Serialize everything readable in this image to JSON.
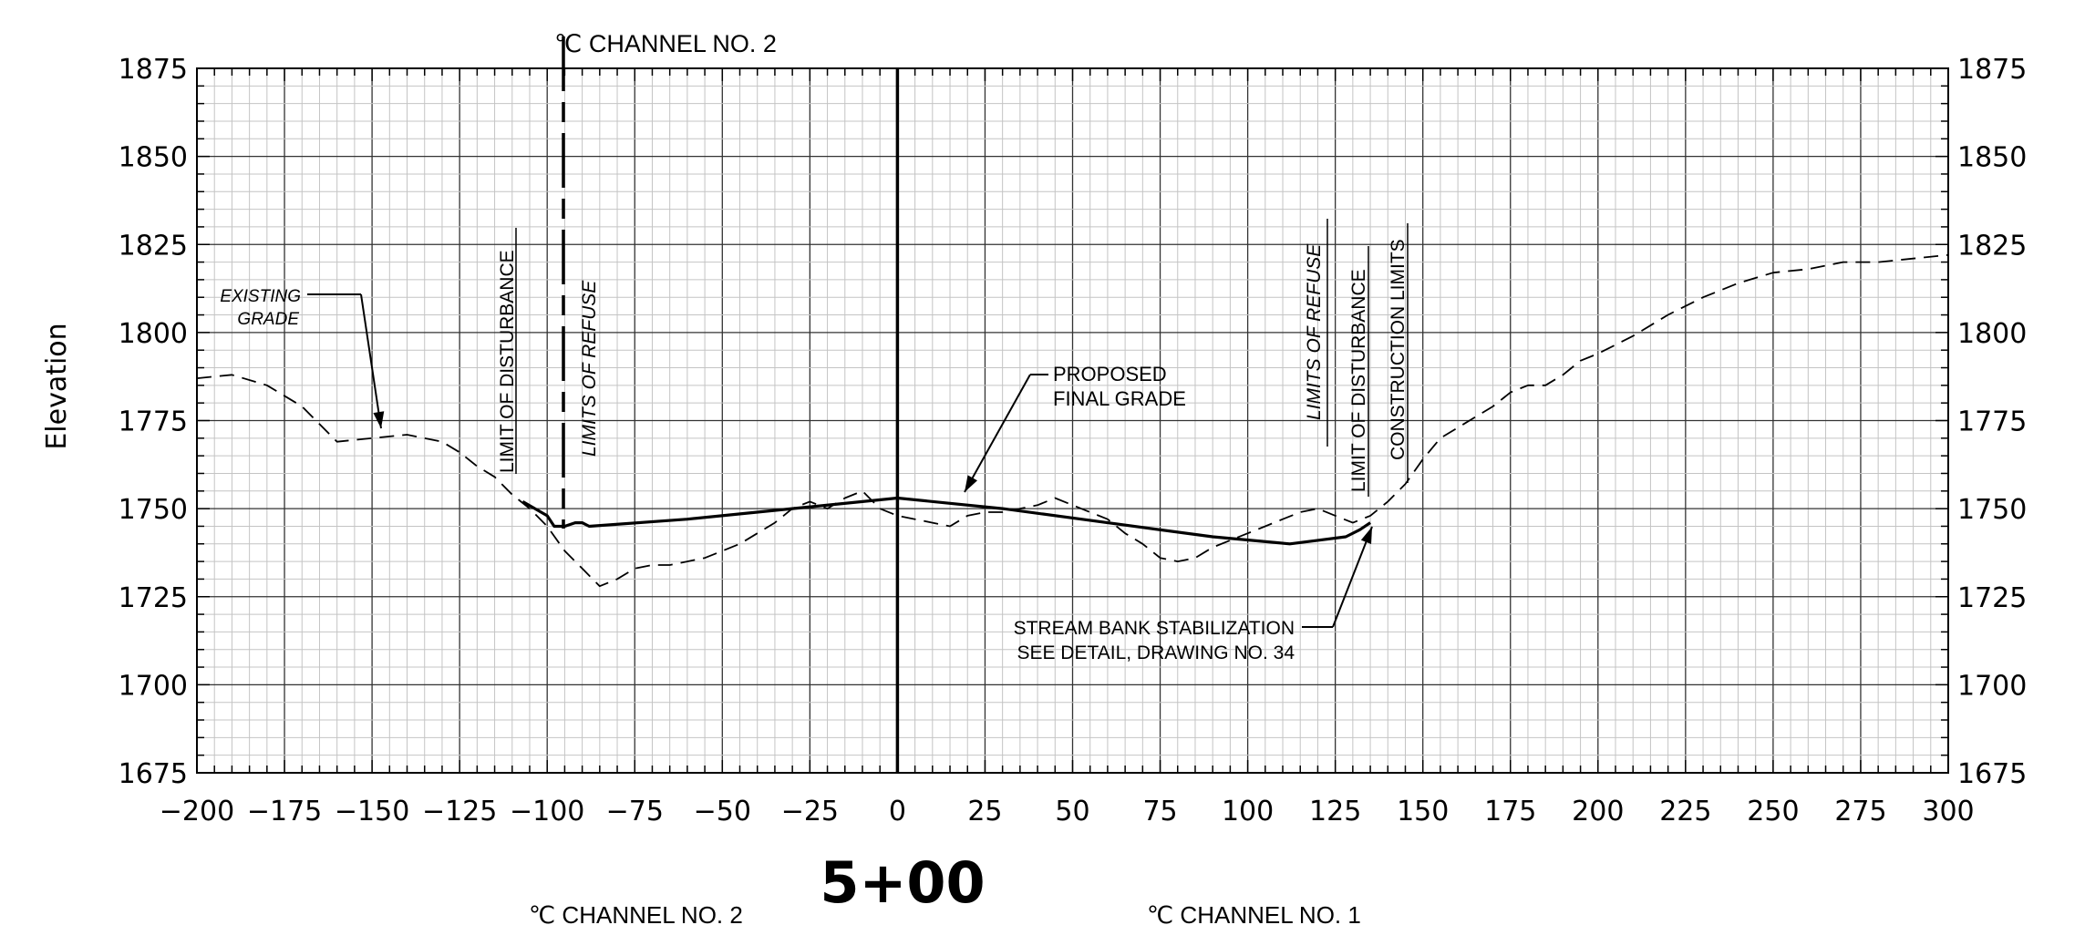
{
  "chart_data": {
    "type": "line",
    "title": "5+00",
    "xlabel": "",
    "ylabel": "Elevation",
    "xlim": [
      -200,
      300
    ],
    "ylim": [
      1675,
      1875
    ],
    "x_ticks": [
      -200,
      -175,
      -150,
      -125,
      -100,
      -75,
      -50,
      -25,
      0,
      25,
      50,
      75,
      100,
      125,
      150,
      175,
      200,
      225,
      250,
      275,
      300
    ],
    "y_ticks": [
      1675,
      1700,
      1725,
      1750,
      1775,
      1800,
      1825,
      1850,
      1875
    ],
    "grid": true,
    "series": [
      {
        "name": "EXISTING GRADE",
        "style": "dashed",
        "x": [
          -200,
          -190,
          -180,
          -170,
          -160,
          -150,
          -140,
          -135,
          -130,
          -125,
          -120,
          -115,
          -110,
          -105,
          -100,
          -95,
          -90,
          -85,
          -80,
          -75,
          -70,
          -65,
          -60,
          -55,
          -50,
          -45,
          -40,
          -35,
          -30,
          -25,
          -20,
          -15,
          -10,
          -5,
          0,
          5,
          10,
          15,
          20,
          25,
          30,
          35,
          40,
          45,
          50,
          55,
          60,
          65,
          70,
          75,
          80,
          85,
          90,
          95,
          100,
          105,
          110,
          115,
          120,
          125,
          130,
          135,
          140,
          145,
          150,
          155,
          160,
          165,
          170,
          175,
          180,
          185,
          190,
          195,
          200,
          210,
          220,
          230,
          240,
          250,
          260,
          270,
          280,
          290,
          300
        ],
        "y": [
          1787,
          1788,
          1785,
          1779,
          1769,
          1770,
          1771,
          1770,
          1769,
          1766,
          1762,
          1759,
          1754,
          1750,
          1745,
          1738,
          1733,
          1728,
          1730,
          1733,
          1734,
          1734,
          1735,
          1736,
          1738,
          1740,
          1743,
          1746,
          1750,
          1752,
          1750,
          1753,
          1755,
          1750,
          1748,
          1747,
          1746,
          1745,
          1748,
          1749,
          1749,
          1750,
          1751,
          1753,
          1751,
          1749,
          1747,
          1743,
          1740,
          1736,
          1735,
          1736,
          1739,
          1741,
          1743,
          1745,
          1747,
          1749,
          1750,
          1748,
          1746,
          1748,
          1752,
          1757,
          1764,
          1770,
          1773,
          1776,
          1779,
          1783,
          1785,
          1785,
          1788,
          1792,
          1794,
          1799,
          1805,
          1810,
          1814,
          1817,
          1818,
          1820,
          1820,
          1821,
          1822
        ]
      },
      {
        "name": "PROPOSED FINAL GRADE",
        "style": "solid",
        "x": [
          -107,
          -100,
          -98,
          -95,
          -92,
          -90,
          -88,
          -60,
          -30,
          0,
          30,
          60,
          90,
          112,
          120,
          128,
          132,
          135
        ],
        "y": [
          1752,
          1748,
          1745,
          1745,
          1746,
          1746,
          1745,
          1747,
          1750,
          1753,
          1750,
          1746,
          1742,
          1740,
          1741,
          1742,
          1744,
          1746
        ]
      }
    ],
    "annotations": {
      "channel_top": "℃ CHANNEL NO. 2",
      "existing_grade_1": "EXISTING",
      "existing_grade_2": "GRADE",
      "limit_disturbance_left": "LIMIT OF DISTURBANCE",
      "limits_refuse_left": "LIMITS OF REFUSE",
      "proposed_1": "PROPOSED",
      "proposed_2": "FINAL GRADE",
      "limits_refuse_right": "LIMITS OF REFUSE",
      "limit_disturbance_right": "LIMIT OF DISTURBANCE",
      "construction_limits": "CONSTRUCTION LIMITS",
      "stream_bank_1": "STREAM BANK STABILIZATION",
      "stream_bank_2": "SEE DETAIL, DRAWING NO. 34",
      "bottom_channel_2": "℃ CHANNEL NO. 2",
      "bottom_channel_1": "℃ CHANNEL NO. 1"
    }
  }
}
